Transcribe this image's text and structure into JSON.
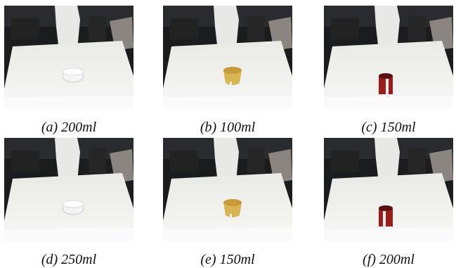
{
  "figures": [
    {
      "caption": "(a) 200ml"
    },
    {
      "caption": "(b) 100ml"
    },
    {
      "caption": "(c) 150ml"
    },
    {
      "caption": "(d) 250ml"
    },
    {
      "caption": "(e) 150ml"
    },
    {
      "caption": "(f) 200ml"
    }
  ]
}
